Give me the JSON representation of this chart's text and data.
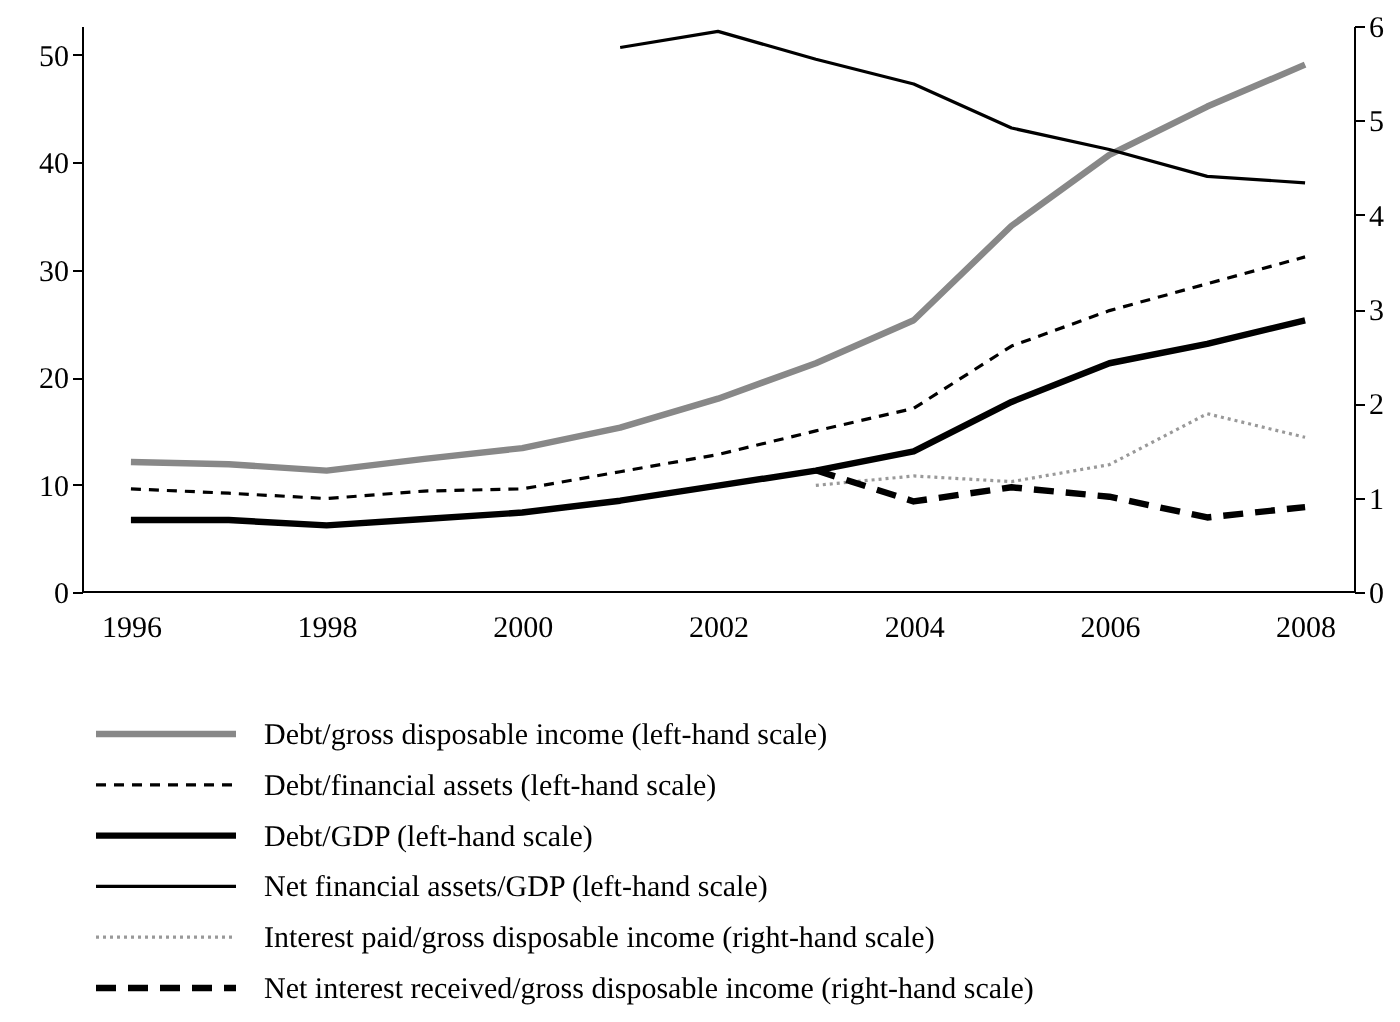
{
  "chart_data": {
    "type": "line",
    "xlim": [
      1995.5,
      2008.5
    ],
    "xticks": [
      1996,
      1998,
      2000,
      2002,
      2004,
      2006,
      2008
    ],
    "ylim": [
      0,
      52.7
    ],
    "yticks": [
      0,
      10,
      20,
      30,
      40,
      50
    ],
    "y2lim": [
      0,
      6
    ],
    "y2ticks": [
      0,
      1,
      2,
      3,
      4,
      5,
      6
    ],
    "legend": "bottom",
    "grid": false,
    "line_style": "solid",
    "series": [
      {
        "name": "Debt/gross disposable income (left-hand scale)",
        "color": "#888888",
        "x": [
          1996,
          1997,
          1998,
          1999,
          2000,
          2001,
          2002,
          2003,
          2004,
          2005,
          2006,
          2007,
          2008
        ],
        "values": [
          12.1,
          11.9,
          11.3,
          12.4,
          13.4,
          15.3,
          18.0,
          21.3,
          25.3,
          34.1,
          40.7,
          45.2,
          49.1
        ]
      },
      {
        "name": "Debt/financial assets (left-hand scale)",
        "color": "#000000",
        "line_style": "dashed",
        "x": [
          1996,
          1997,
          1998,
          1999,
          2000,
          2001,
          2002,
          2003,
          2004,
          2005,
          2006,
          2007,
          2008
        ],
        "values": [
          9.6,
          9.2,
          8.7,
          9.4,
          9.6,
          11.2,
          12.8,
          15.0,
          17.1,
          22.9,
          26.2,
          28.7,
          31.2
        ]
      },
      {
        "name": "Debt/GDP (left-hand scale)",
        "color": "#000000",
        "x": [
          1996,
          1997,
          1998,
          1999,
          2000,
          2001,
          2002,
          2003,
          2004,
          2005,
          2006,
          2007,
          2008
        ],
        "values": [
          6.7,
          6.7,
          6.2,
          6.8,
          7.4,
          8.5,
          9.9,
          11.3,
          13.1,
          17.7,
          21.3,
          23.1,
          25.3
        ]
      },
      {
        "name": "Net financial assets/GDP (left-hand scale)",
        "color": "#000000",
        "x": [
          2001,
          2002,
          2003,
          2004,
          2005,
          2006,
          2007,
          2008
        ],
        "values": [
          50.7,
          52.2,
          49.6,
          47.3,
          43.2,
          41.2,
          38.7,
          38.1
        ]
      },
      {
        "name": "Interest paid/gross disposable income (right-hand scale)",
        "color": "#999999",
        "line_style": "dotted",
        "axis": "y2",
        "x": [
          2003,
          2004,
          2005,
          2006,
          2007,
          2008
        ],
        "values": [
          1.13,
          1.23,
          1.17,
          1.35,
          1.89,
          1.64
        ]
      },
      {
        "name": "Net interest received/gross disposable income (right-hand scale)",
        "color": "#000000",
        "line_style": "dashed",
        "axis": "y2",
        "x": [
          2003,
          2004,
          2005,
          2006,
          2007,
          2008
        ],
        "values": [
          1.29,
          0.96,
          1.11,
          1.01,
          0.79,
          0.9
        ]
      }
    ]
  }
}
